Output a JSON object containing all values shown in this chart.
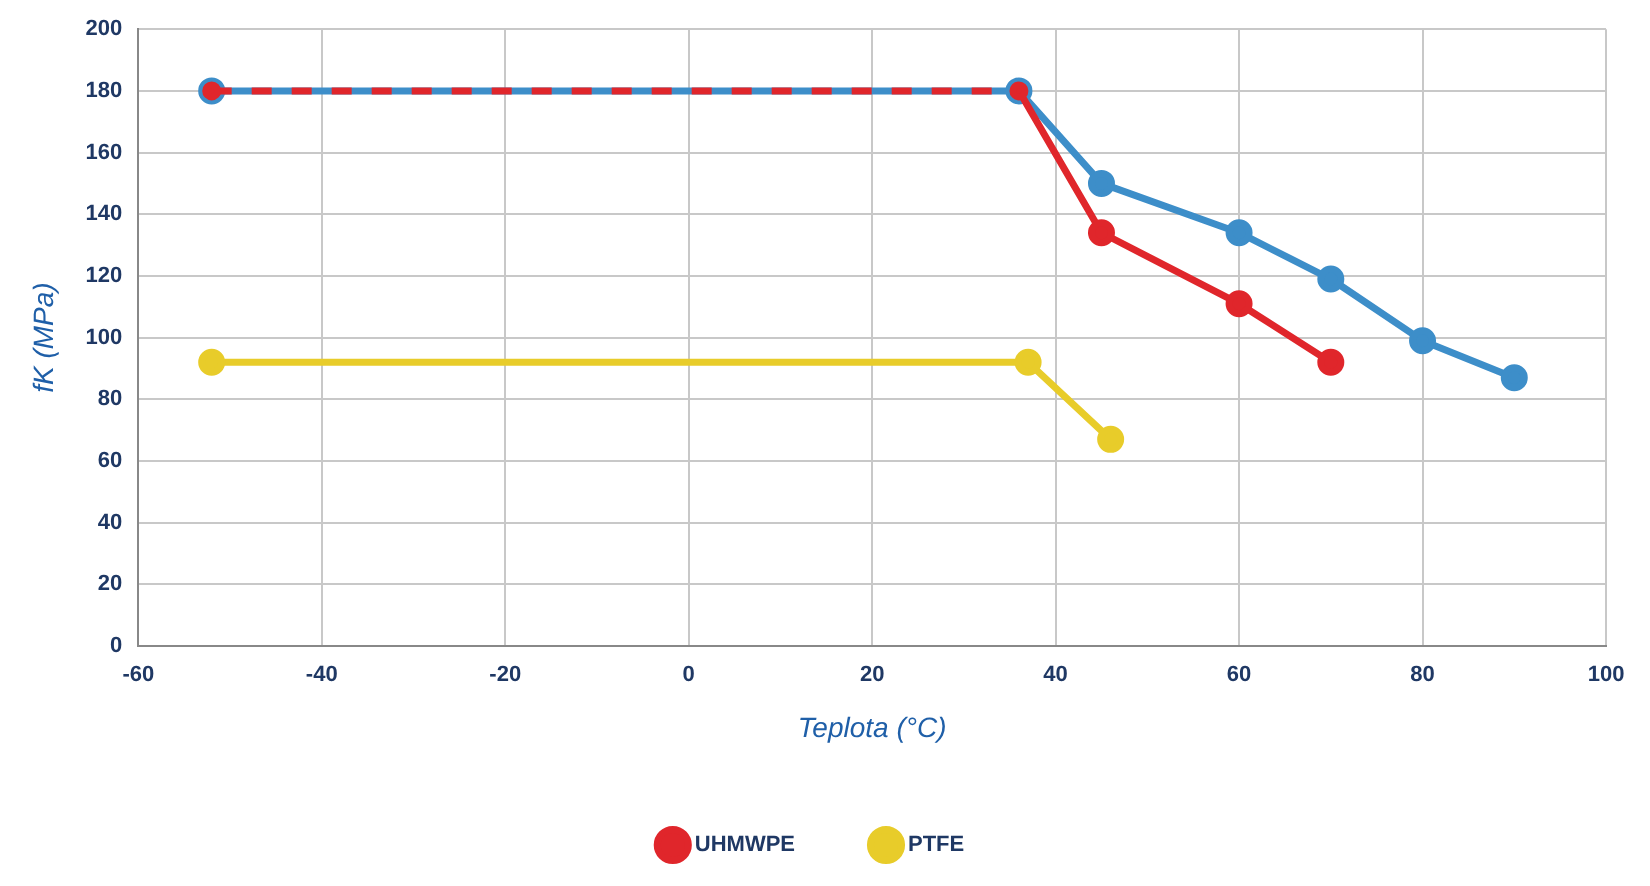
{
  "chart_data": {
    "type": "line",
    "xlabel": "Teplota (°C)",
    "ylabel": "fK (MPa)",
    "xlim": [
      -60,
      100
    ],
    "xticks": [
      -60,
      -40,
      -20,
      0,
      20,
      40,
      60,
      80,
      100
    ],
    "ylim": [
      0,
      200
    ],
    "yticks": [
      0,
      20,
      40,
      60,
      80,
      100,
      120,
      140,
      160,
      180,
      200
    ],
    "grid": true,
    "legend": "bottom",
    "marker": "circle",
    "line_style": "solid",
    "series": [
      {
        "color": "#3d8ec9",
        "x": [
          -52,
          36,
          45,
          60,
          70,
          80,
          90
        ],
        "values": [
          180,
          180,
          150,
          134,
          119,
          99,
          87
        ]
      },
      {
        "name": "UHMWPE",
        "color": "#e0262b",
        "x": [
          -52,
          36,
          45,
          60,
          70
        ],
        "values": [
          180,
          180,
          134,
          111,
          92
        ]
      },
      {
        "name": "PTFE",
        "color": "#e8cc2a",
        "x": [
          -52,
          37,
          46
        ],
        "values": [
          92,
          92,
          67
        ]
      }
    ]
  }
}
